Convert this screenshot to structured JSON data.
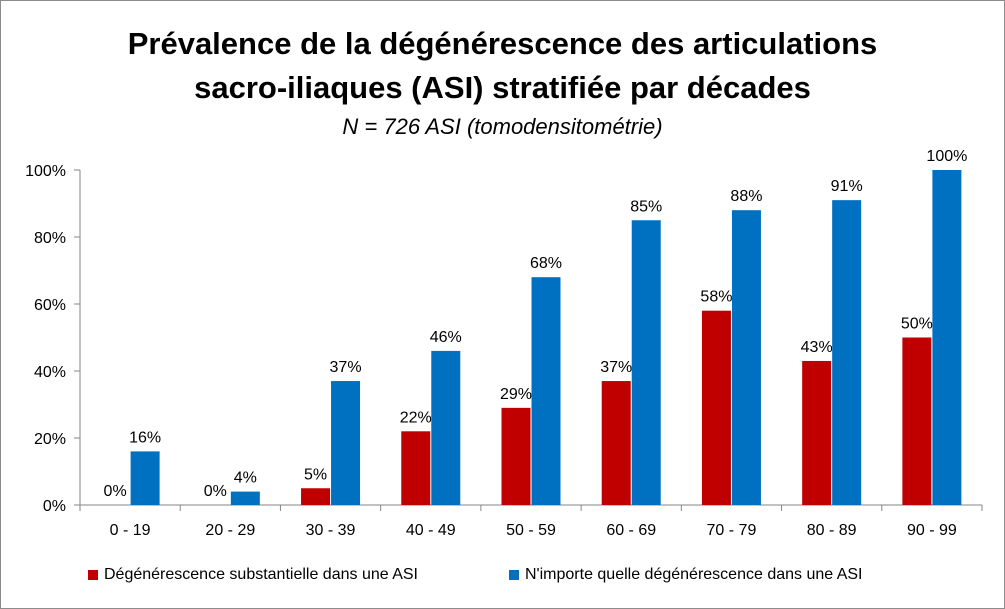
{
  "chart_data": {
    "type": "bar",
    "title_line1": "Prévalence de la dégénérescence des articulations",
    "title_line2": "sacro-iliaques (ASI) stratifiée par décades",
    "subtitle": "N = 726 ASI (tomodensitométrie)",
    "categories": [
      "0 - 19",
      "20 - 29",
      "30 - 39",
      "40 - 49",
      "50 - 59",
      "60 - 69",
      "70 - 79",
      "80 - 89",
      "90 - 99"
    ],
    "series": [
      {
        "name": "Dégénérescence substantielle dans une ASI",
        "color": "#C00000",
        "values": [
          0,
          0,
          5,
          22,
          29,
          37,
          58,
          43,
          50
        ],
        "labels": [
          "0%",
          "0%",
          "5%",
          "22%",
          "29%",
          "37%",
          "58%",
          "43%",
          "50%"
        ]
      },
      {
        "name": "N'importe quelle dégénérescence dans une ASI",
        "color": "#0070C0",
        "values": [
          16,
          4,
          37,
          46,
          68,
          85,
          88,
          91,
          100
        ],
        "labels": [
          "16%",
          "4%",
          "37%",
          "46%",
          "68%",
          "85%",
          "88%",
          "91%",
          "100%"
        ]
      }
    ],
    "y_ticks": [
      "0%",
      "20%",
      "40%",
      "60%",
      "80%",
      "100%"
    ],
    "ylim": [
      0,
      100
    ],
    "grid": false,
    "legend_position": "bottom"
  }
}
